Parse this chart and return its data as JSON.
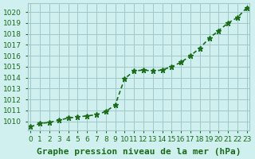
{
  "x": [
    0,
    1,
    2,
    3,
    4,
    5,
    6,
    7,
    8,
    9,
    10,
    11,
    12,
    13,
    14,
    15,
    16,
    17,
    18,
    19,
    20,
    21,
    22,
    23
  ],
  "y": [
    1009.5,
    1009.8,
    1009.9,
    1010.1,
    1010.3,
    1010.4,
    1010.5,
    1010.6,
    1010.9,
    1011.5,
    1013.9,
    1014.6,
    1014.7,
    1014.6,
    1014.7,
    1015.0,
    1015.4,
    1016.0,
    1016.7,
    1017.6,
    1018.3,
    1019.0,
    1019.5,
    1020.4
  ],
  "line_color": "#1a6b1a",
  "marker": "*",
  "marker_size": 5,
  "bg_color": "#d0f0f0",
  "grid_color": "#a0c8c8",
  "text_color": "#1a6b1a",
  "title": "Graphe pression niveau de la mer (hPa)",
  "xlabel_vals": [
    0,
    1,
    2,
    3,
    4,
    5,
    6,
    7,
    8,
    9,
    10,
    11,
    12,
    13,
    14,
    15,
    16,
    17,
    18,
    19,
    20,
    21,
    22,
    23
  ],
  "ylabel_vals": [
    1010,
    1011,
    1012,
    1013,
    1014,
    1015,
    1016,
    1017,
    1018,
    1019,
    1020
  ],
  "ylim": [
    1009.2,
    1020.8
  ],
  "xlim": [
    -0.3,
    23.3
  ],
  "title_fontsize": 8,
  "tick_fontsize": 6.5,
  "line_width": 1.2
}
